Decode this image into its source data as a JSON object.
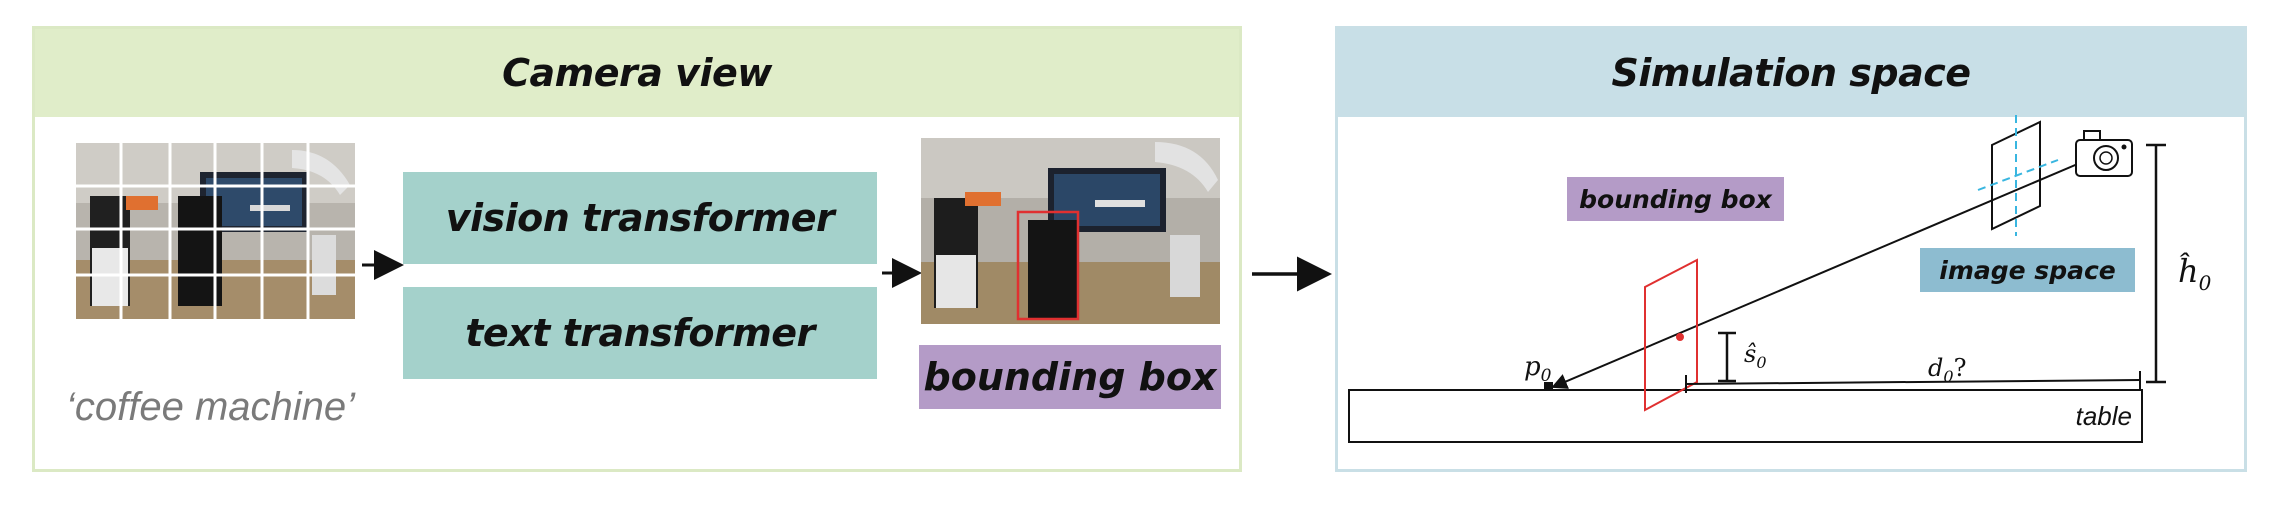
{
  "camera_panel": {
    "title": "Camera view",
    "vision_transformer_label": "vision transformer",
    "text_transformer_label": "text transformer",
    "bounding_box_label": "bounding box",
    "query_text": "‘coffee machine’"
  },
  "simulation_panel": {
    "title": "Simulation space",
    "bounding_box_label": "bounding box",
    "image_space_label": "image space",
    "table_label": "table",
    "p0_label": "p",
    "p0_sub": "0",
    "s0_label": "ŝ",
    "s0_sub": "0",
    "d0_label": "d",
    "d0_sub": "0",
    "d0_suffix": "?",
    "h0_label": "ĥ",
    "h0_sub": "0"
  },
  "colors": {
    "camera_header": "#e0edc9",
    "simulation_header": "#c8dfe7",
    "transformer_box": "#a4d1cb",
    "bounding_box_tag": "#b49bc7",
    "image_space_tag": "#8dbcd0",
    "detection_red": "#e03030",
    "camera_axis_cyan": "#39b6e0"
  }
}
